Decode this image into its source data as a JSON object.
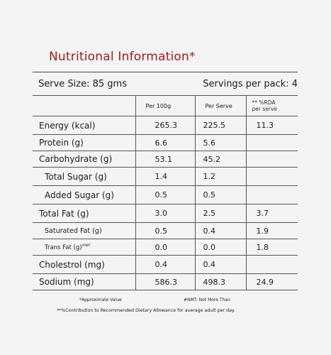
{
  "title": "Nutritional Information*",
  "serve_size": "Serve Size: 85 gms",
  "servings": "Servings per pack: 4",
  "columns": {
    "per100": "Per 100g",
    "perServe": "Per Serve",
    "rda_line1": "** %RDA",
    "rda_line2": "per serve"
  },
  "rows": [
    {
      "label": "Energy (kcal)",
      "per100": "265.3",
      "perServe": "225.5",
      "rda": "11.3"
    },
    {
      "label": "Protein (g)",
      "per100": "6.6",
      "perServe": "5.6",
      "rda": ""
    },
    {
      "label": "Carbohydrate (g)",
      "per100": "53.1",
      "perServe": "45.2",
      "rda": ""
    },
    {
      "label": "Total Sugar (g)",
      "per100": "1.4",
      "perServe": "1.2",
      "rda": ""
    },
    {
      "label": "Added Sugar (g)",
      "per100": "0.5",
      "perServe": "0.5",
      "rda": ""
    },
    {
      "label": "Total Fat (g)",
      "per100": "3.0",
      "perServe": "2.5",
      "rda": "3.7"
    },
    {
      "label": "Saturated Fat (g)",
      "per100": "0.5",
      "perServe": "0.4",
      "rda": "1.9"
    },
    {
      "label": "Trans Fat (g)",
      "label_sup": "#NMT",
      "per100": "0.0",
      "perServe": "0.0",
      "rda": "1.8"
    },
    {
      "label": "Cholestrol (mg)",
      "per100": "0.4",
      "perServe": "0.4",
      "rda": ""
    },
    {
      "label": "Sodium (mg)",
      "per100": "586.3",
      "perServe": "498.3",
      "rda": "24.9"
    }
  ],
  "notes": {
    "approx": "*Approximate Value",
    "nmt": "#NMT: Not More Than",
    "rda": "**%Contribution to Recommended Dietary Allowance for average adult per day."
  }
}
